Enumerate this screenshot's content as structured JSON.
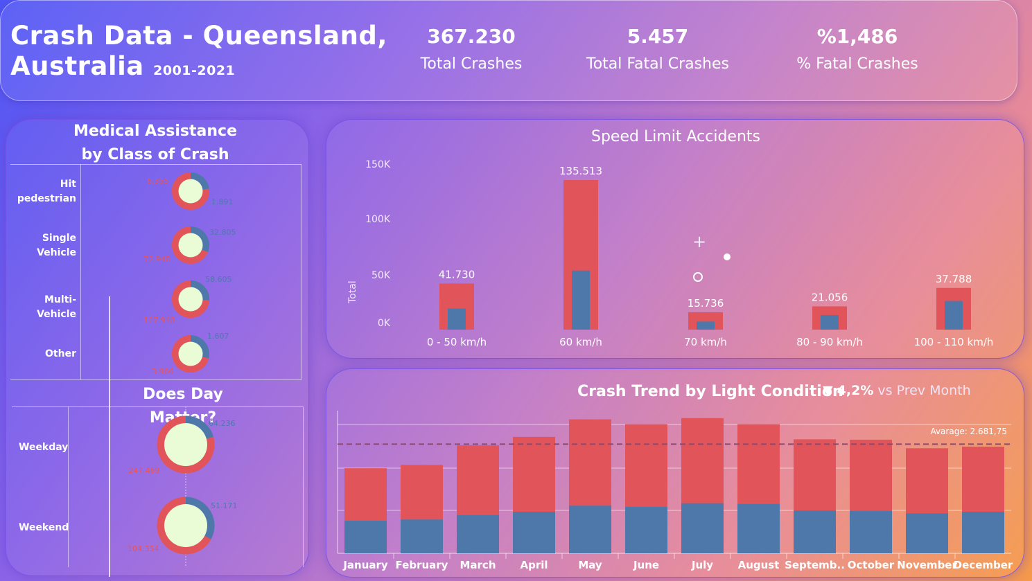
{
  "header": {
    "title_line1": "Crash Data - Queensland,",
    "title_line2": "Australia",
    "years": "2001-2021",
    "kpis": [
      {
        "value": "367.230",
        "label": "Total Crashes"
      },
      {
        "value": "5.457",
        "label": "Total Fatal Crashes"
      },
      {
        "value": "%1,486",
        "label": "% Fatal Crashes"
      }
    ]
  },
  "colors": {
    "red": "#e0545a",
    "blue": "#4e78aa",
    "donut_center": "#eafcd6"
  },
  "medical": {
    "title_line1": "Medical Assistance",
    "title_line2": "by Class of Crash",
    "rows": [
      {
        "label_line1": "Hit",
        "label_line2": "pedestrian",
        "red_value": "6.355",
        "blue_value": "1.891"
      },
      {
        "label_line1": "Single",
        "label_line2": "Vehicle",
        "red_value": "72.948",
        "blue_value": "32.805"
      },
      {
        "label_line1": "Multi-Vehicle",
        "label_line2": "",
        "red_value": "167.948",
        "blue_value": "58.605"
      },
      {
        "label_line1": "Other",
        "label_line2": "",
        "red_value": "3.966",
        "blue_value": "1.607"
      }
    ]
  },
  "day": {
    "title": "Does Day Matter?",
    "rows": [
      {
        "label": "Weekday",
        "red_value": "247.469",
        "blue_value": "64.236"
      },
      {
        "label": "Weekend",
        "red_value": "104.354",
        "blue_value": "51.171"
      }
    ]
  },
  "speed": {
    "title": "Speed Limit Accidents",
    "ylabel": "Total",
    "value_labels": [
      "41.730",
      "135.513",
      "15.736",
      "21.056",
      "37.788"
    ]
  },
  "trend": {
    "title": "Crash Trend by Light Condition",
    "delta_arrow": "▼",
    "delta_value": "4,2%",
    "delta_text": "vs Prev Month",
    "average_label": "Avarage: 2.681,75"
  },
  "chart_data": [
    {
      "type": "pie",
      "title": "Medical Assistance by Class of Crash",
      "categories": [
        "Hit pedestrian",
        "Single Vehicle",
        "Multi-Vehicle",
        "Other"
      ],
      "series": [
        {
          "values": [
            6355,
            72948,
            167948,
            3966
          ]
        },
        {
          "values": [
            1891,
            32805,
            58605,
            1607
          ]
        }
      ]
    },
    {
      "type": "pie",
      "title": "Does Day Matter?",
      "categories": [
        "Weekday",
        "Weekend"
      ],
      "series": [
        {
          "values": [
            247469,
            104354
          ]
        },
        {
          "values": [
            64236,
            51171
          ]
        }
      ]
    },
    {
      "type": "bar",
      "title": "Speed Limit Accidents",
      "ylabel": "Total",
      "categories": [
        "0 - 50 km/h",
        "60 km/h",
        "70 km/h",
        "80 - 90 km/h",
        "100 - 110 km/h"
      ],
      "yticks": [
        "0K",
        "50K",
        "100K",
        "150K"
      ],
      "ylim": [
        0,
        150000
      ],
      "series": [
        {
          "values": [
            41730,
            135513,
            15736,
            21056,
            37788
          ]
        },
        {
          "values": [
            19000,
            53500,
            7300,
            13200,
            26000
          ]
        }
      ]
    },
    {
      "type": "bar",
      "title": "Crash Trend by Light Condition",
      "categories": [
        "January",
        "February",
        "March",
        "April",
        "May",
        "June",
        "July",
        "August",
        "Septemb..",
        "October",
        "November",
        "December"
      ],
      "ylim": [
        0,
        3300
      ],
      "average": 2681.75,
      "series": [
        {
          "values": [
            2090,
            2170,
            2650,
            2860,
            3290,
            3170,
            3320,
            3170,
            2800,
            2790,
            2580,
            2620
          ]
        },
        {
          "values": [
            800,
            830,
            940,
            1020,
            1170,
            1140,
            1230,
            1210,
            1050,
            1040,
            980,
            1020
          ]
        }
      ]
    }
  ]
}
